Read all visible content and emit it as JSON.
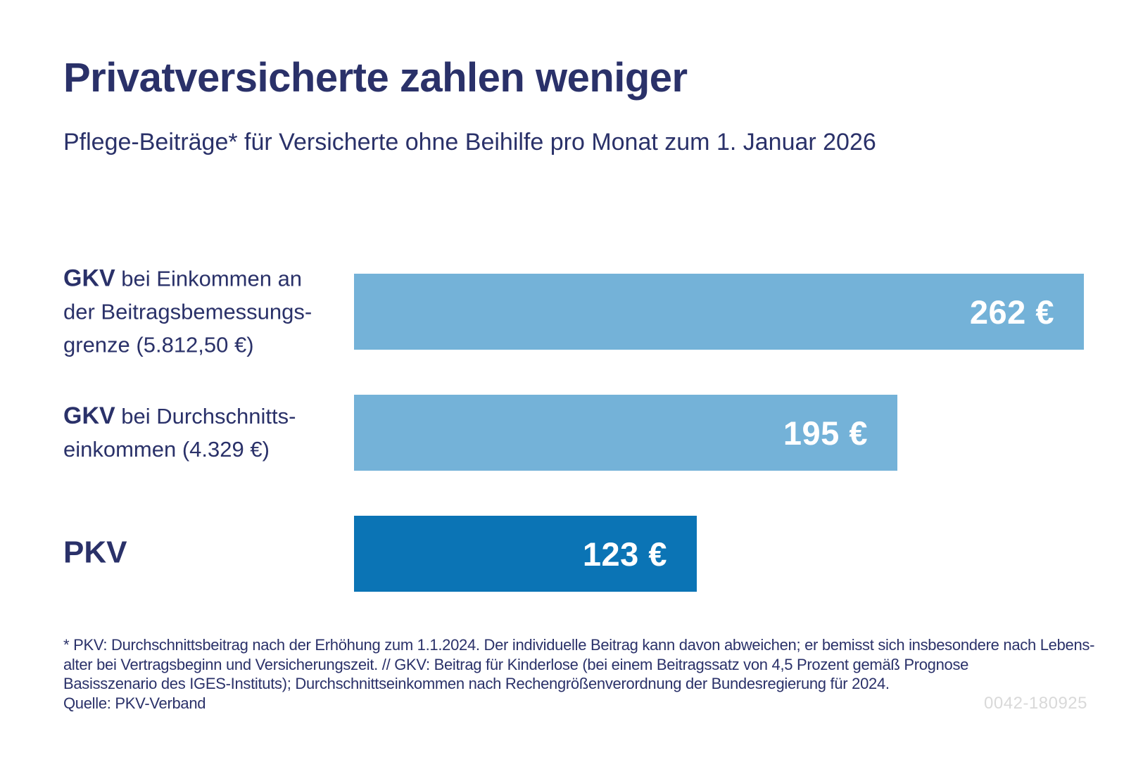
{
  "header": {
    "title": "Privatversicherte zahlen weniger",
    "subtitle": "Pflege-Beiträge* für Versicherte ohne Beihilfe pro Monat zum 1. Januar 2026"
  },
  "chart_data": {
    "type": "bar",
    "orientation": "horizontal",
    "title": "Privatversicherte zahlen weniger",
    "subtitle": "Pflege-Beiträge* für Versicherte ohne Beihilfe pro Monat zum 1. Januar 2026",
    "value_unit": "€ pro Monat",
    "xlim": [
      0,
      262
    ],
    "grid": false,
    "legend": false,
    "bars": [
      {
        "category_bold": "GKV",
        "category_lines": [
          "bei Einkommen an",
          "der Beitragsbemessungs-",
          "grenze (5.812,50 €)"
        ],
        "value": 262,
        "value_label": "262 €",
        "color": "#74b2d8"
      },
      {
        "category_bold": "GKV",
        "category_lines": [
          "bei Durchschnitts-",
          "einkommen (4.329 €)"
        ],
        "value": 195,
        "value_label": "195 €",
        "color": "#74b2d8"
      },
      {
        "category_bold": "PKV",
        "category_lines": [],
        "value": 123,
        "value_label": "123 €",
        "color": "#0b74b5"
      }
    ]
  },
  "footer": {
    "footnote_lines": [
      "* PKV: Durchschnittsbeitrag nach der Erhöhung zum 1.1.2024. Der individuelle Beitrag kann davon abweichen; er bemisst sich insbesondere nach Lebens-",
      "alter bei Vertragsbeginn und Versicherungszeit. // GKV: Beitrag für Kinderlose (bei einem Beitragssatz von 4,5 Prozent gemäß Prognose",
      "Basisszenario des IGES-Instituts); Durchschnittseinkommen nach Rechengrößenverordnung der Bundesregierung für 2024."
    ],
    "source": "Quelle: PKV-Verband",
    "figure_code": "0042-180925"
  },
  "colors": {
    "navy_text": "#2a3169",
    "light_blue_bar": "#74b2d8",
    "dark_blue_bar": "#0b74b5",
    "value_text": "#ffffff",
    "code_gray": "#d9d9d9",
    "background": "#ffffff"
  }
}
